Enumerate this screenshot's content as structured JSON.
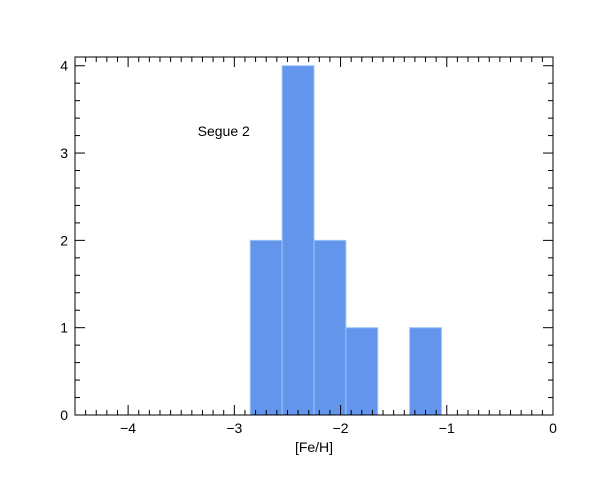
{
  "chart_data": {
    "type": "bar",
    "subtype": "histogram",
    "xlabel": "[Fe/H]",
    "ylabel": "",
    "xlim": [
      -4.5,
      0
    ],
    "ylim": [
      0,
      4.1
    ],
    "x_ticks": [
      -4,
      -3,
      -2,
      -1,
      0
    ],
    "x_tick_labels": [
      "−4",
      "−3",
      "−2",
      "−1",
      "0"
    ],
    "y_ticks": [
      0,
      1,
      2,
      3,
      4
    ],
    "y_tick_labels": [
      "0",
      "1",
      "2",
      "3",
      "4"
    ],
    "x_minor_step": 0.1,
    "y_minor_step": 0.2,
    "annotation": {
      "text": "Segue 2",
      "x": -3.1,
      "y": 3.25
    },
    "bar_color": "#6495ed",
    "bar_edge_color": "#9ec5f5",
    "bins": [
      {
        "x0": -2.85,
        "x1": -2.55,
        "count": 2
      },
      {
        "x0": -2.55,
        "x1": -2.25,
        "count": 4
      },
      {
        "x0": -2.25,
        "x1": -1.95,
        "count": 2
      },
      {
        "x0": -1.95,
        "x1": -1.65,
        "count": 1
      },
      {
        "x0": -1.35,
        "x1": -1.05,
        "count": 1
      }
    ],
    "grid": false,
    "legend": "none"
  }
}
